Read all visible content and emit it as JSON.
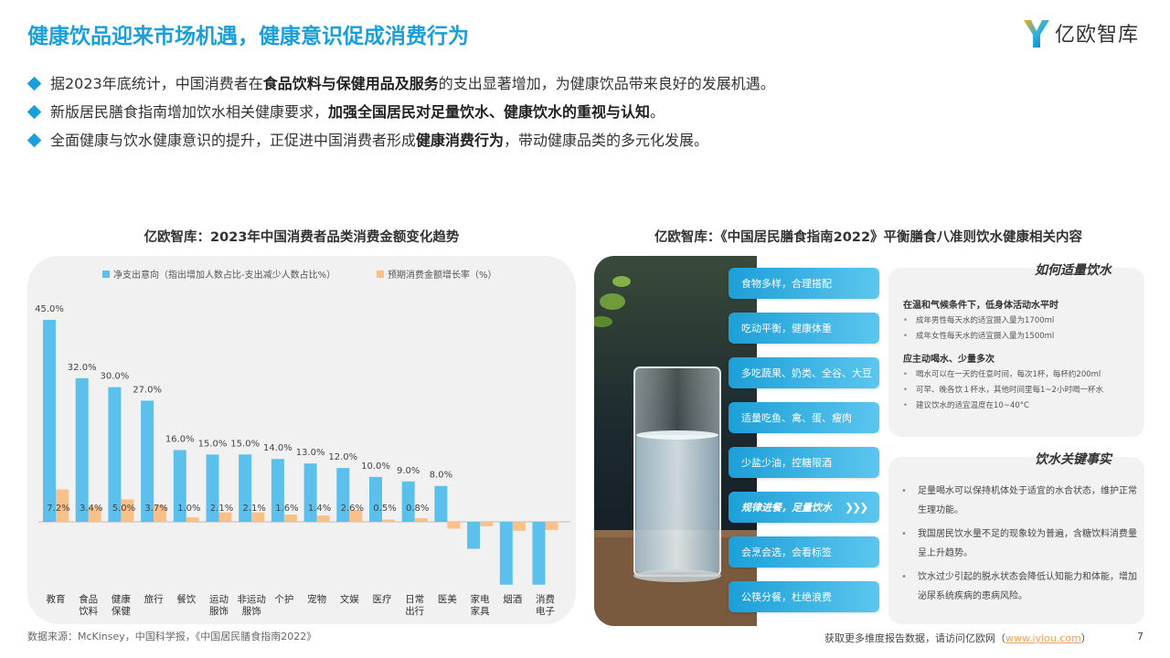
{
  "header": {
    "title": "健康饮品迎来市场机遇，健康意识促成消费行为",
    "logo_text": "亿欧智库"
  },
  "bullets": [
    {
      "pre": "据2023年底统计，中国消费者在",
      "bold": "食品饮料与保健用品及服务",
      "post": "的支出显著增加，为健康饮品带来良好的发展机遇。"
    },
    {
      "pre": "新版居民膳食指南增加饮水相关健康要求，",
      "bold": "加强全国居民对足量饮水、健康饮水的重视与认知",
      "post": "。"
    },
    {
      "pre": "全面健康与饮水健康意识的提升，正促进中国消费者形成",
      "bold": "健康消费行为",
      "post": "，带动健康品类的多元化发展。"
    }
  ],
  "left_panel": {
    "title": "亿欧智库：2023年中国消费者品类消费金额变化趋势"
  },
  "chart_data": {
    "type": "bar",
    "categories": [
      "教育",
      "食品\n饮料",
      "健康\n保健",
      "旅行",
      "餐饮",
      "运动\n服饰",
      "非运动\n服饰",
      "个护",
      "宠物",
      "文娱",
      "医疗",
      "日常\n出行",
      "医美",
      "家电\n家具",
      "烟酒",
      "消费\n电子"
    ],
    "series": [
      {
        "name": "净支出意向（指出增加人数占比-支出减少人数占比%）",
        "color": "#5bc0eb",
        "values": [
          45.0,
          32.0,
          30.0,
          27.0,
          16.0,
          15.0,
          15.0,
          14.0,
          13.0,
          12.0,
          10.0,
          9.0,
          8.0,
          -6.0,
          -14.0,
          -14.0
        ],
        "labels": [
          "45.0%",
          "32.0%",
          "30.0%",
          "27.0%",
          "16.0%",
          "15.0%",
          "15.0%",
          "14.0%",
          "13.0%",
          "12.0%",
          "10.0%",
          "9.0%",
          "8.0%",
          "",
          "",
          ""
        ]
      },
      {
        "name": "预期消费金额增长率（%）",
        "color": "#f9c08a",
        "values": [
          7.2,
          3.4,
          5.0,
          3.7,
          1.0,
          2.1,
          2.1,
          1.6,
          1.4,
          2.6,
          0.5,
          0.8,
          -1.5,
          -1.0,
          -2.0,
          -1.8
        ],
        "labels": [
          "7.2%",
          "3.4%",
          "5.0%",
          "3.7%",
          "1.0%",
          "2.1%",
          "2.1%",
          "1.6%",
          "1.4%",
          "2.6%",
          "0.5%",
          "0.8%",
          "",
          "",
          "",
          ""
        ]
      }
    ],
    "ylim": [
      -14,
      45
    ],
    "grid": false,
    "legend": "top-center"
  },
  "right_panel": {
    "title": "亿欧智库：《中国居民膳食指南2022》平衡膳食八准则饮水健康相关内容",
    "principles": [
      "食物多样，合理搭配",
      "吃动平衡，健康体重",
      "多吃蔬果、奶类、全谷、大豆",
      "适量吃鱼、禽、蛋、瘦肉",
      "少盐少油，控糖限酒",
      "规律进餐，足量饮水",
      "会烹会选，会看标签",
      "公筷分餐，杜绝浪费"
    ],
    "highlight_arrow": "❯❯❯",
    "card1": {
      "heading": "如何适量饮水",
      "sections": [
        {
          "sub": "在温和气候条件下，低身体活动水平时",
          "items": [
            "成年男性每天水的适宜摄入量为1700ml",
            "成年女性每天水的适宜摄入量为1500ml"
          ]
        },
        {
          "sub": "应主动喝水、少量多次",
          "items": [
            "喝水可以在一天的任意时间，每次1杯，每杯约200ml",
            "可早、晚各饮１杯水，其他时间里每1~2小时喝一杯水",
            "建议饮水的适宜温度在10~40°C"
          ]
        }
      ]
    },
    "card2": {
      "heading": "饮水关键事实",
      "items": [
        "足量喝水可以保持机体处于适宜的水合状态，维护正常生理功能。",
        "我国居民饮水量不足的现象较为普遍，含糖饮料消费量呈上升趋势。",
        "饮水过少引起的脱水状态会降低认知能力和体能，增加泌尿系统疾病的患病风险。"
      ]
    }
  },
  "footer": {
    "source": "数据来源：McKinsey，中国科学报，《中国居民膳食指南2022》",
    "cta_pre": "获取更多维度报告数据，请访问亿欧网（",
    "cta_link": "www.iyiou.com",
    "cta_post": "）",
    "page": "7"
  },
  "colors": {
    "accent": "#1a9fd9",
    "bar_primary": "#5bc0eb",
    "bar_secondary": "#f9c08a"
  }
}
